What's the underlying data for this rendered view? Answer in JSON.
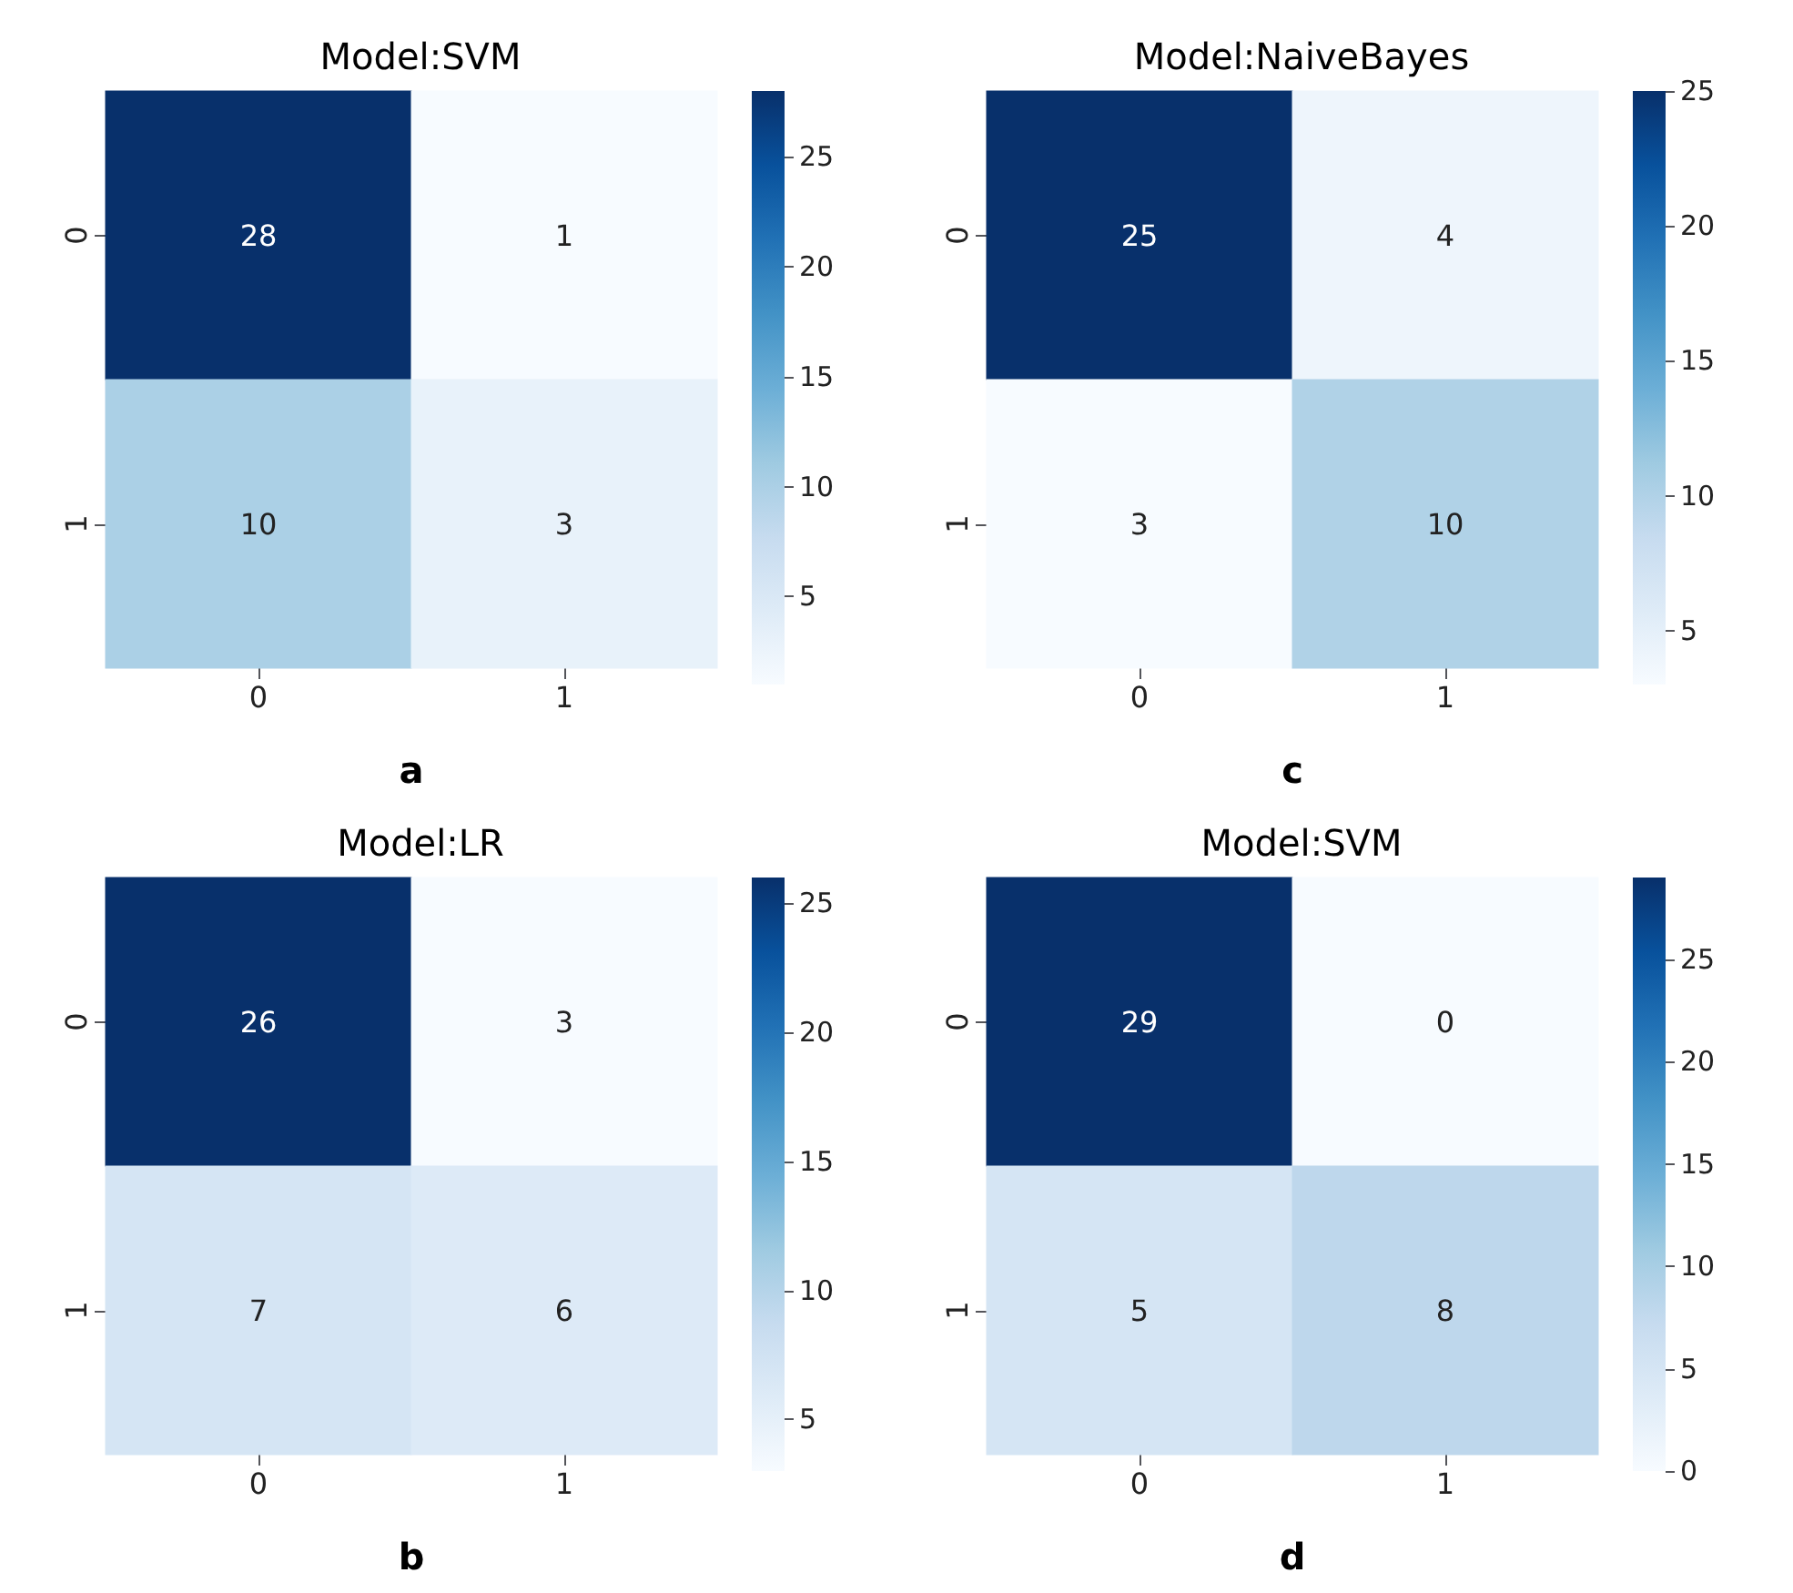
{
  "chart_data": [
    {
      "type": "heatmap",
      "title": "Model:SVM",
      "xlabel": "a",
      "categories": [
        "0",
        "1"
      ],
      "y_categories": [
        "0",
        "1"
      ],
      "cells": [
        [
          28,
          1
        ],
        [
          10,
          3
        ]
      ],
      "clim": [
        1,
        28
      ],
      "cticks": [
        5,
        10,
        15,
        20,
        25
      ],
      "data_labels": true
    },
    {
      "type": "heatmap",
      "title": "Model:NaiveBayes",
      "xlabel": "c",
      "categories": [
        "0",
        "1"
      ],
      "y_categories": [
        "0",
        "1"
      ],
      "cells": [
        [
          25,
          4
        ],
        [
          3,
          10
        ]
      ],
      "clim": [
        3,
        25
      ],
      "cticks": [
        5,
        10,
        15,
        20,
        25
      ],
      "data_labels": true
    },
    {
      "type": "heatmap",
      "title": "Model:LR",
      "xlabel": "b",
      "categories": [
        "0",
        "1"
      ],
      "y_categories": [
        "0",
        "1"
      ],
      "cells": [
        [
          26,
          3
        ],
        [
          7,
          6
        ]
      ],
      "clim": [
        3,
        26
      ],
      "cticks": [
        5,
        10,
        15,
        20,
        25
      ],
      "data_labels": true
    },
    {
      "type": "heatmap",
      "title": "Model:SVM",
      "xlabel": "d",
      "categories": [
        "0",
        "1"
      ],
      "y_categories": [
        "0",
        "1"
      ],
      "cells": [
        [
          29,
          0
        ],
        [
          5,
          8
        ]
      ],
      "clim": [
        0,
        29
      ],
      "cticks": [
        0,
        5,
        10,
        15,
        20,
        25
      ],
      "data_labels": true
    }
  ]
}
